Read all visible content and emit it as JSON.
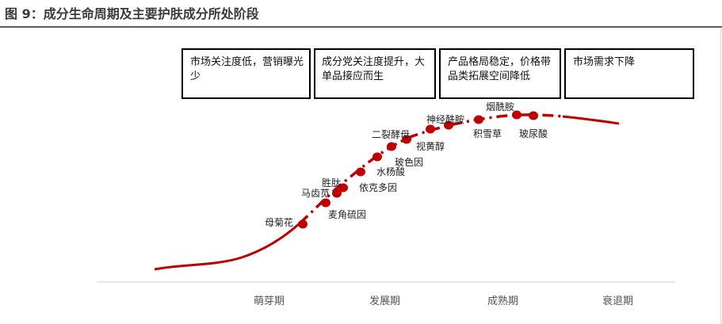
{
  "title": "图 9：成分生命周期及主要护肤成分所处阶段",
  "colors": {
    "curve": "#c00000",
    "marker": "#c00000",
    "axis": "#cccccc",
    "box_border": "#000000"
  },
  "stage_boxes": [
    {
      "text": "市场关注度低，营销曝光少"
    },
    {
      "text": "成分党关注度提升，大单品接应而生"
    },
    {
      "text": "产品格局稳定，价格带品类拓展空间降低"
    },
    {
      "text": "市场需求下降"
    }
  ],
  "stages": [
    "萌芽期",
    "发展期",
    "成熟期",
    "衰退期"
  ],
  "ingredients": [
    "母菊花",
    "马齿苋",
    "胜肽",
    "麦角硫因",
    "依克多因",
    "水杨酸",
    "玻色因",
    "二裂酵母",
    "视黄醇",
    "神经酰胺",
    "烟酰胺",
    "积雪草",
    "玻尿酸"
  ]
}
